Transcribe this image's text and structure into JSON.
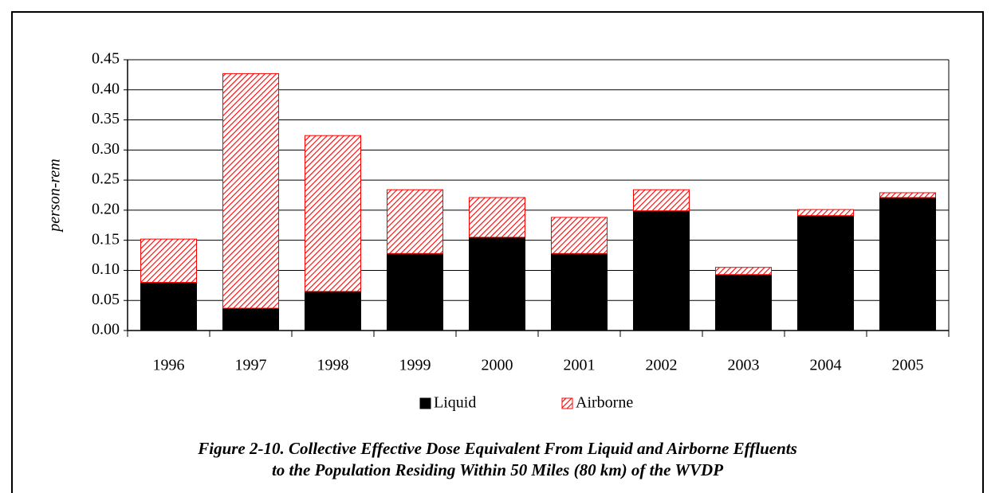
{
  "chart_data": {
    "type": "stacked_bar",
    "title": "Figure 2-10. Collective Effective Dose Equivalent From Liquid and Airborne Effluents",
    "subtitle": "to the Population Residing Within 50 Miles (80 km) of the WVDP",
    "y_label": "person-rem",
    "categories": [
      "1996",
      "1997",
      "1998",
      "1999",
      "2000",
      "2001",
      "2002",
      "2003",
      "2004",
      "2005"
    ],
    "series": [
      {
        "name": "Liquid",
        "color": "#000000",
        "values": [
          0.08,
          0.037,
          0.065,
          0.128,
          0.155,
          0.128,
          0.199,
          0.093,
          0.191,
          0.221
        ]
      },
      {
        "name": "Airborne",
        "color": "#ff0000",
        "pattern": "hatch",
        "values": [
          0.072,
          0.39,
          0.259,
          0.106,
          0.066,
          0.06,
          0.035,
          0.012,
          0.01,
          0.008
        ]
      }
    ],
    "ylim": [
      0,
      0.45
    ],
    "yticks": [
      {
        "value": 0,
        "label": "0.00"
      },
      0.05,
      {
        "value": 0.1,
        "label": "0.10"
      },
      0.15,
      {
        "value": 0.2,
        "label": "0.20"
      },
      0.25,
      {
        "value": 0.3,
        "label": "0.30"
      },
      0.35,
      {
        "value": 0.4,
        "label": "0.40"
      },
      0.45
    ],
    "grid": true,
    "legend": "bottom"
  }
}
